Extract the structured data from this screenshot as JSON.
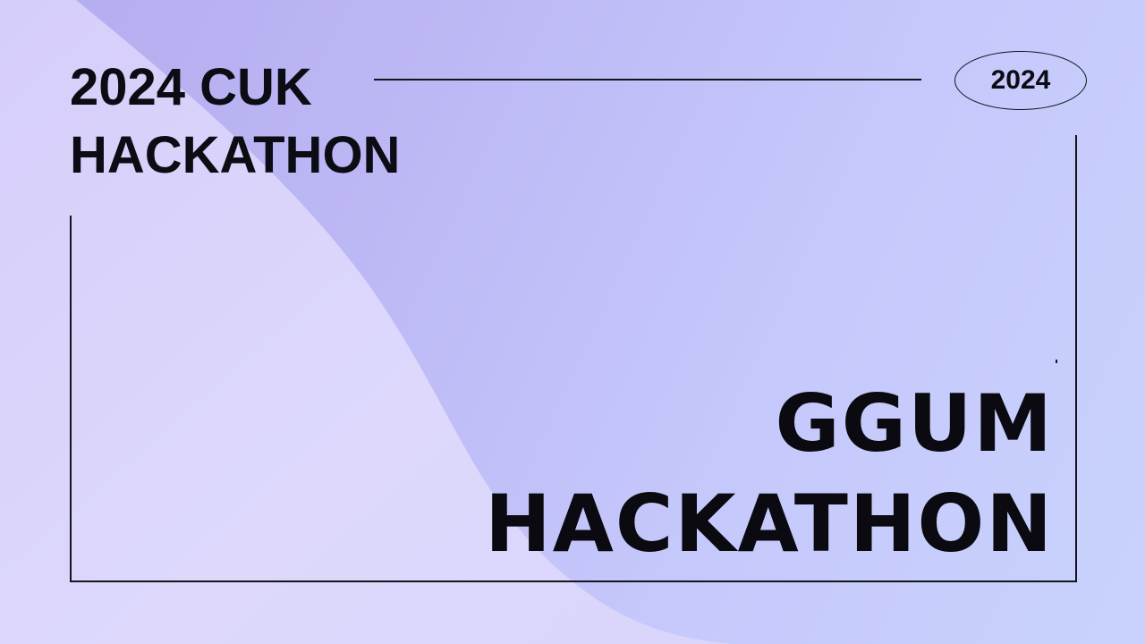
{
  "header": {
    "title_line1": "2024 CUK",
    "title_line2": "HACKATHON",
    "year_badge": "2024"
  },
  "main": {
    "title_line1": "GGUM",
    "title_line2": "HACKATHON"
  },
  "colors": {
    "background_start": "#b3abef",
    "background_end": "#c9d2fd",
    "wave_light": "#dcd6fb",
    "text": "#0c0c14",
    "lines": "#14141c"
  }
}
